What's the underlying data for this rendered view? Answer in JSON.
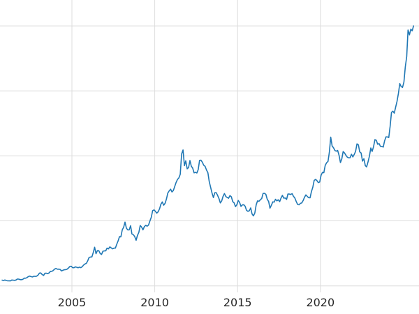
{
  "chart_data": {
    "type": "line",
    "title": "",
    "xlabel": "",
    "ylabel": "",
    "legend": false,
    "grid": true,
    "background": "#ffffff",
    "line_color": "#1f77b4",
    "grid_color": "#dcdcdc",
    "tick_label_color": "#262626",
    "xlim": [
      2000.66,
      2025.95
    ],
    "ylim": [
      120,
      3719
    ],
    "x_ticks": [
      2005,
      2010,
      2015,
      2020
    ],
    "x_tick_labels": [
      "2005",
      "2010",
      "2015",
      "2020"
    ],
    "y_gridlines": [
      200,
      1000,
      1800,
      2600,
      3400
    ],
    "x_start": 2000.79,
    "x_step_years": 0.0833333,
    "values": [
      270,
      266,
      272,
      266,
      262,
      263,
      261,
      272,
      270,
      268,
      272,
      284,
      283,
      276,
      276,
      281,
      295,
      294,
      302,
      314,
      321,
      313,
      310,
      319,
      317,
      319,
      333,
      357,
      359,
      340,
      328,
      355,
      356,
      351,
      360,
      379,
      379,
      389,
      407,
      414,
      405,
      406,
      403,
      384,
      392,
      398,
      400,
      405,
      420,
      439,
      442,
      424,
      423,
      434,
      429,
      422,
      431,
      424,
      437,
      456,
      470,
      477,
      510,
      550,
      555,
      557,
      611,
      676,
      596,
      634,
      633,
      598,
      586,
      627,
      630,
      631,
      665,
      655,
      680,
      667,
      656,
      665,
      665,
      713,
      755,
      806,
      804,
      890,
      922,
      985,
      910,
      889,
      889,
      940,
      839,
      830,
      807,
      761,
      820,
      858,
      943,
      924,
      890,
      929,
      946,
      934,
      949,
      997,
      1043,
      1127,
      1135,
      1118,
      1095,
      1113,
      1149,
      1205,
      1233,
      1193,
      1216,
      1271,
      1342,
      1370,
      1390,
      1356,
      1373,
      1424,
      1474,
      1511,
      1529,
      1573,
      1825,
      1873,
      1680,
      1739,
      1641,
      1656,
      1743,
      1674,
      1650,
      1591,
      1598,
      1590,
      1630,
      1745,
      1747,
      1721,
      1685,
      1671,
      1627,
      1593,
      1485,
      1414,
      1343,
      1287,
      1347,
      1348,
      1316,
      1276,
      1221,
      1244,
      1301,
      1336,
      1299,
      1288,
      1279,
      1311,
      1296,
      1237,
      1223,
      1176,
      1200,
      1251,
      1227,
      1178,
      1197,
      1199,
      1181,
      1130,
      1117,
      1125,
      1159,
      1086,
      1061,
      1097,
      1200,
      1246,
      1242,
      1260,
      1276,
      1337,
      1340,
      1327,
      1266,
      1238,
      1157,
      1192,
      1234,
      1231,
      1266,
      1246,
      1260,
      1237,
      1283,
      1314,
      1280,
      1282,
      1264,
      1331,
      1330,
      1325,
      1335,
      1303,
      1281,
      1238,
      1202,
      1198,
      1215,
      1221,
      1250,
      1292,
      1320,
      1301,
      1286,
      1284,
      1359,
      1413,
      1499,
      1511,
      1495,
      1471,
      1479,
      1561,
      1597,
      1592,
      1683,
      1716,
      1732,
      1843,
      2030,
      1922,
      1900,
      1866,
      1858,
      1867,
      1808,
      1718,
      1762,
      1853,
      1835,
      1807,
      1784,
      1776,
      1777,
      1820,
      1787,
      1817,
      1856,
      1948,
      1937,
      1850,
      1836,
      1736,
      1765,
      1681,
      1664,
      1726,
      1797,
      1898,
      1855,
      1913,
      2000,
      1992,
      1943,
      1951,
      1918,
      1916,
      1908,
      1984,
      2034,
      2034,
      2025,
      2160,
      2335,
      2351,
      2327,
      2398,
      2470,
      2568,
      2690,
      2652,
      2644,
      2708,
      2897,
      3022,
      3350,
      3290,
      3360,
      3340,
      3400
    ]
  }
}
